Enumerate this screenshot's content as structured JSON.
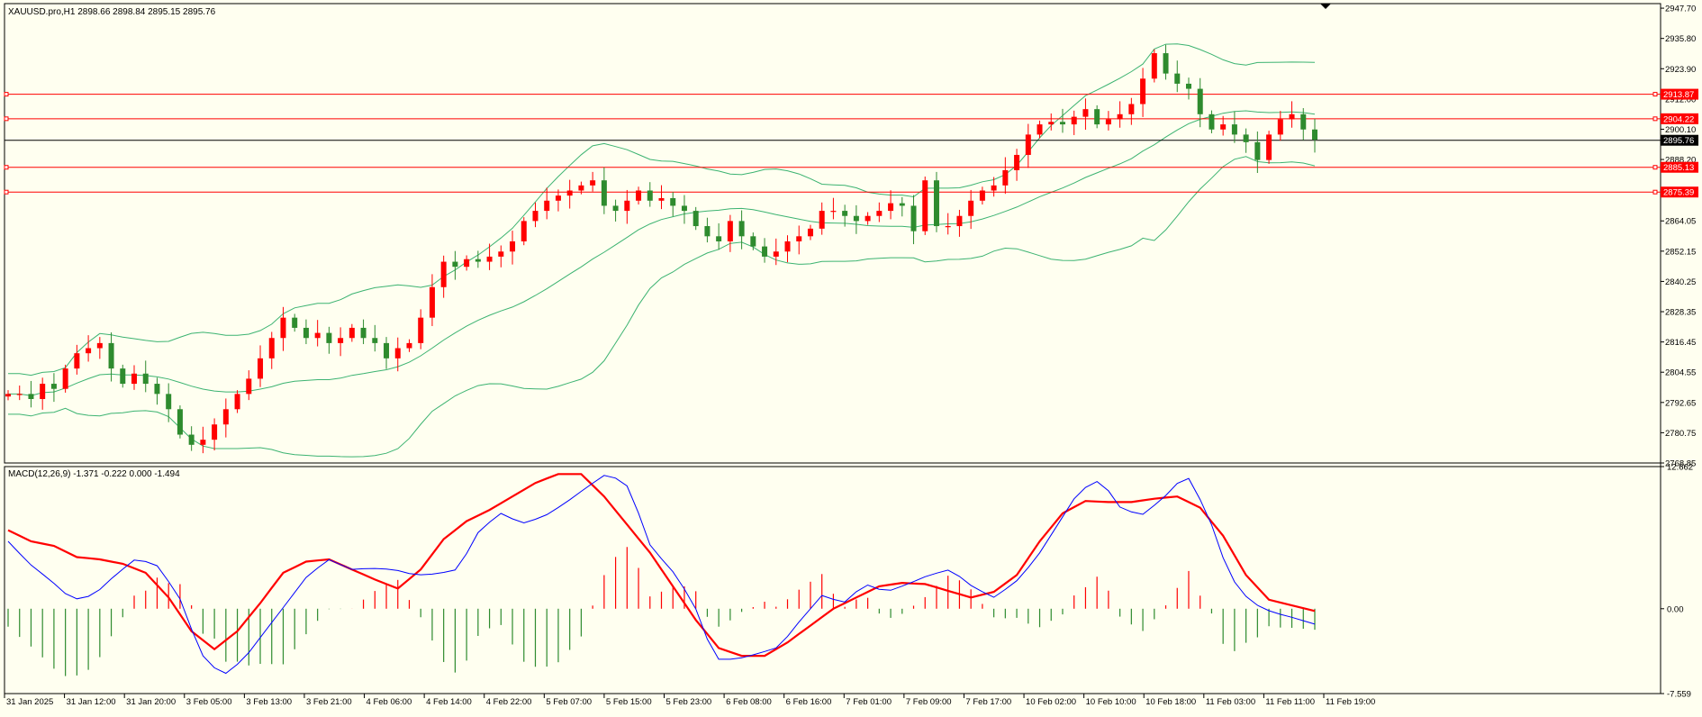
{
  "main_chart": {
    "symbol_line": "XAUUSD.pro,H1  2898.66 2898.84 2895.15 2895.76",
    "price_scale": [
      "2947.70",
      "2935.80",
      "2923.90",
      "2912.00",
      "2900.10",
      "2888.20",
      "2876.10",
      "2864.05",
      "2852.15",
      "2840.25",
      "2828.35",
      "2816.45",
      "2804.55",
      "2792.65",
      "2780.75",
      "2768.85"
    ]
  },
  "hlines": [
    {
      "price": 2913.87,
      "label": "2913.87",
      "color": "#ff0000"
    },
    {
      "price": 2904.22,
      "label": "2904.22",
      "color": "#ff0000"
    },
    {
      "price": 2895.76,
      "label": "2895.76",
      "color": "#000000"
    },
    {
      "price": 2885.13,
      "label": "2885.13",
      "color": "#ff0000"
    },
    {
      "price": 2875.39,
      "label": "2875.39",
      "color": "#ff0000"
    }
  ],
  "macd_panel": {
    "label": "MACD(12,26,9) -1.371 -0.222 0.000 -1.494",
    "scale": [
      "12.662",
      "0.00",
      "-7.559"
    ]
  },
  "time_axis": [
    "31 Jan 2025",
    "31 Jan 12:00",
    "31 Jan 20:00",
    "3 Feb 05:00",
    "3 Feb 13:00",
    "3 Feb 21:00",
    "4 Feb 06:00",
    "4 Feb 14:00",
    "4 Feb 22:00",
    "5 Feb 07:00",
    "5 Feb 15:00",
    "5 Feb 23:00",
    "6 Feb 08:00",
    "6 Feb 16:00",
    "7 Feb 01:00",
    "7 Feb 09:00",
    "7 Feb 17:00",
    "10 Feb 02:00",
    "10 Feb 10:00",
    "10 Feb 18:00",
    "11 Feb 03:00",
    "11 Feb 11:00",
    "11 Feb 19:00"
  ],
  "colors": {
    "background": "#fffff0",
    "bull": "#ff0000",
    "bear": "#2e8b2e",
    "bands": "#3cb371",
    "macd_line": "#0000ff",
    "signal_line": "#ff0000"
  },
  "chart_data": [
    {
      "type": "candlestick",
      "title": "XAUUSD.pro,H1",
      "ylim": [
        2768.85,
        2949.5
      ],
      "close_path": [
        2796,
        2796,
        2794,
        2800,
        2798,
        2806,
        2812,
        2814,
        2816,
        2806,
        2800,
        2804,
        2800,
        2796,
        2790,
        2780,
        2776,
        2778,
        2784,
        2790,
        2796,
        2802,
        2810,
        2818,
        2826,
        2822,
        2818,
        2820,
        2816,
        2818,
        2822,
        2818,
        2816,
        2810,
        2814,
        2816,
        2826,
        2838,
        2848,
        2846,
        2849,
        2848,
        2850,
        2852,
        2856,
        2864,
        2868,
        2872,
        2874,
        2876,
        2878,
        2880,
        2870,
        2868,
        2872,
        2876,
        2872,
        2873,
        2870,
        2868,
        2862,
        2858,
        2856,
        2864,
        2858,
        2854,
        2850,
        2852,
        2856,
        2858,
        2861,
        2868,
        2868,
        2866,
        2864,
        2866,
        2868,
        2871,
        2870,
        2860,
        2880,
        2862,
        2862,
        2866,
        2872,
        2876,
        2878,
        2884,
        2890,
        2898,
        2902,
        2903,
        2902,
        2905,
        2908,
        2902,
        2904,
        2906,
        2910,
        2920,
        2930,
        2922,
        2918,
        2916,
        2906,
        2900,
        2902,
        2898,
        2895,
        2888,
        2898,
        2904,
        2906,
        2900,
        2896
      ],
      "macd_lines": {
        "macd": [
          6,
          4,
          2.5,
          0.8,
          1.2,
          3,
          4.5,
          3.8,
          1,
          -4,
          -6,
          -4.5,
          -2,
          0.5,
          3,
          4.4,
          3.5,
          3.6,
          3.5,
          3,
          3.1,
          3.5,
          7,
          8.5,
          7.6,
          8.2,
          9.4,
          10.8,
          12.1,
          10.8,
          5.5,
          3.4,
          0.5,
          -4.5,
          -4.5,
          -4,
          -3.4,
          -1,
          1.2,
          0.5,
          2.2,
          1.5,
          2.2,
          3,
          3.5,
          2,
          1,
          2.3,
          4.5,
          7.5,
          10.5,
          11.5,
          8.8,
          8.4,
          10,
          12,
          8.5,
          3,
          0.6,
          -0.3,
          -0.8,
          -1.37
        ],
        "signal": [
          7,
          6,
          5.6,
          4.6,
          4.4,
          4,
          3.2,
          1,
          -2,
          -3.6,
          -2,
          0.5,
          3.2,
          4.2,
          4.4,
          3.5,
          2.6,
          1.8,
          3.5,
          6.2,
          7.8,
          8.8,
          10,
          11.2,
          12,
          12,
          10,
          7.5,
          5,
          2,
          -1,
          -3.5,
          -4.2,
          -4.2,
          -3,
          -1.5,
          0,
          1,
          2,
          2.3,
          2.2,
          1.6,
          1,
          1.5,
          3,
          6,
          8.5,
          9.6,
          9.5,
          9.5,
          9.8,
          10,
          9,
          6.5,
          3,
          0.8,
          0.3,
          -0.2
        ]
      },
      "hlines": [
        2913.87,
        2904.22,
        2895.76,
        2885.13,
        2875.39
      ]
    },
    {
      "type": "bar",
      "title": "MACD(12,26,9)",
      "ylim": [
        -7.559,
        12.662
      ]
    }
  ]
}
